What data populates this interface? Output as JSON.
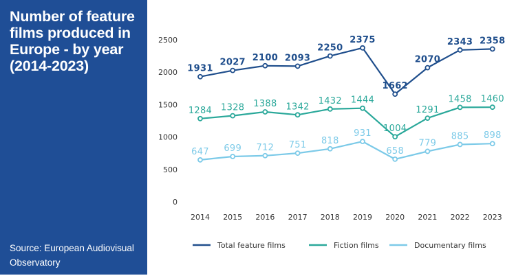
{
  "panel": {
    "title": "Number of feature films produced in Europe - by year (2014-2023)",
    "source": "Source: European Audiovisual Observatory"
  },
  "colors": {
    "panel_bg": "#1f4e96",
    "total": "#1f4e8c",
    "fiction": "#2aa89a",
    "documentary": "#7ccae8",
    "axis_text": "#333333"
  },
  "chart_data": {
    "type": "line",
    "title": "Number of feature films produced in Europe - by year (2014-2023)",
    "xlabel": "",
    "ylabel": "",
    "ylim": [
      0,
      2500
    ],
    "yticks": [
      0,
      500,
      1000,
      1500,
      2000,
      2500
    ],
    "ytick_labels": [
      "0",
      "500",
      "1000",
      "1500",
      "2000",
      "2500"
    ],
    "grid": false,
    "legend": "bottom",
    "x": [
      "2014",
      "2015",
      "2016",
      "2017",
      "2018",
      "2019",
      "2020",
      "2021",
      "2022",
      "2023"
    ],
    "series": [
      {
        "key": "total",
        "name": "Total feature films",
        "values": [
          1931,
          2027,
          2100,
          2093,
          2250,
          2375,
          1662,
          2070,
          2343,
          2358
        ],
        "labels": [
          "1931",
          "2027",
          "2100",
          "2093",
          "2250",
          "2375",
          "1662",
          "2070",
          "2343",
          "2358"
        ]
      },
      {
        "key": "fiction",
        "name": "Fiction films",
        "values": [
          1284,
          1328,
          1388,
          1342,
          1432,
          1444,
          1004,
          1291,
          1458,
          1460
        ],
        "labels": [
          "1284",
          "1328",
          "1388",
          "1342",
          "1432",
          "1444",
          "1004",
          "1291",
          "1458",
          "1460"
        ]
      },
      {
        "key": "documentary",
        "name": "Documentary films",
        "values": [
          647,
          699,
          712,
          751,
          818,
          931,
          658,
          779,
          885,
          898
        ],
        "labels": [
          "647",
          "699",
          "712",
          "751",
          "818",
          "931",
          "658",
          "779",
          "885",
          "898"
        ]
      }
    ]
  }
}
